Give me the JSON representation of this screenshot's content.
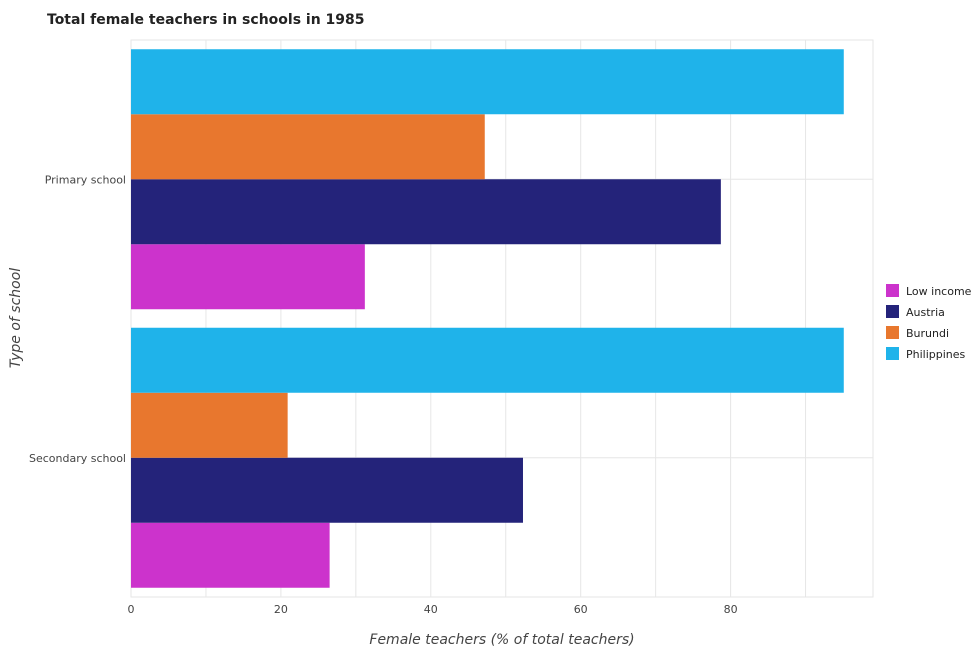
{
  "chart_data": {
    "type": "bar",
    "orientation": "horizontal",
    "title": "Total female teachers in schools in 1985",
    "xlabel": "Female teachers (% of total teachers)",
    "ylabel": "Type of school",
    "categories": [
      "Primary school",
      "Secondary school"
    ],
    "xlim": [
      0,
      99
    ],
    "xticks": [
      0,
      20,
      40,
      60,
      80
    ],
    "grid": true,
    "legend_position": "right",
    "series": [
      {
        "name": "Low income",
        "color": "#cc33cc",
        "values": [
          31.2,
          26.5
        ]
      },
      {
        "name": "Austria",
        "color": "#24237a",
        "values": [
          78.7,
          52.3
        ]
      },
      {
        "name": "Burundi",
        "color": "#e8772e",
        "values": [
          47.2,
          20.9
        ]
      },
      {
        "name": "Philippines",
        "color": "#1fb3ea",
        "values": [
          95.1,
          95.1
        ]
      }
    ]
  }
}
